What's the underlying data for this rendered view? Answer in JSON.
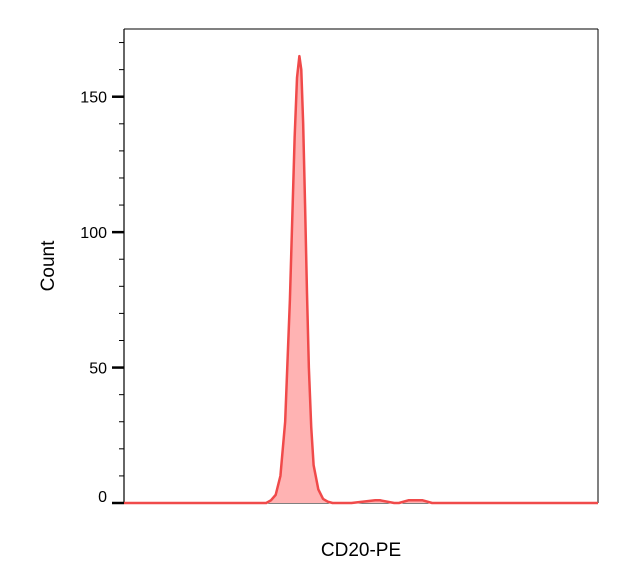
{
  "chart_data": {
    "type": "area",
    "title": "",
    "xlabel": "CD20-PE",
    "ylabel": "Count",
    "ylim": [
      0,
      175
    ],
    "yticks_major": [
      0,
      50,
      100,
      150
    ],
    "yticks_minor_step": 10,
    "xlim": [
      0,
      100
    ],
    "x_tick_labels": [],
    "grid": false,
    "legend": "none",
    "series": [
      {
        "color": "#f04a4a",
        "fill_color": "#ffb3b3",
        "x": [
          0,
          30,
          31,
          32,
          33,
          34,
          35,
          36,
          36.5,
          37,
          37.4,
          37.8,
          38.2,
          38.6,
          39,
          39.5,
          40,
          41,
          42,
          43,
          44,
          45,
          48,
          53,
          54,
          57,
          58,
          60,
          62,
          63,
          65,
          68,
          100
        ],
        "y": [
          0,
          0,
          1,
          3,
          10,
          30,
          75,
          135,
          157,
          165,
          160,
          140,
          110,
          78,
          50,
          28,
          14,
          5,
          1.5,
          0.5,
          0,
          0,
          0,
          1,
          1,
          0,
          0,
          1,
          1,
          1,
          0,
          0,
          0
        ]
      }
    ]
  }
}
